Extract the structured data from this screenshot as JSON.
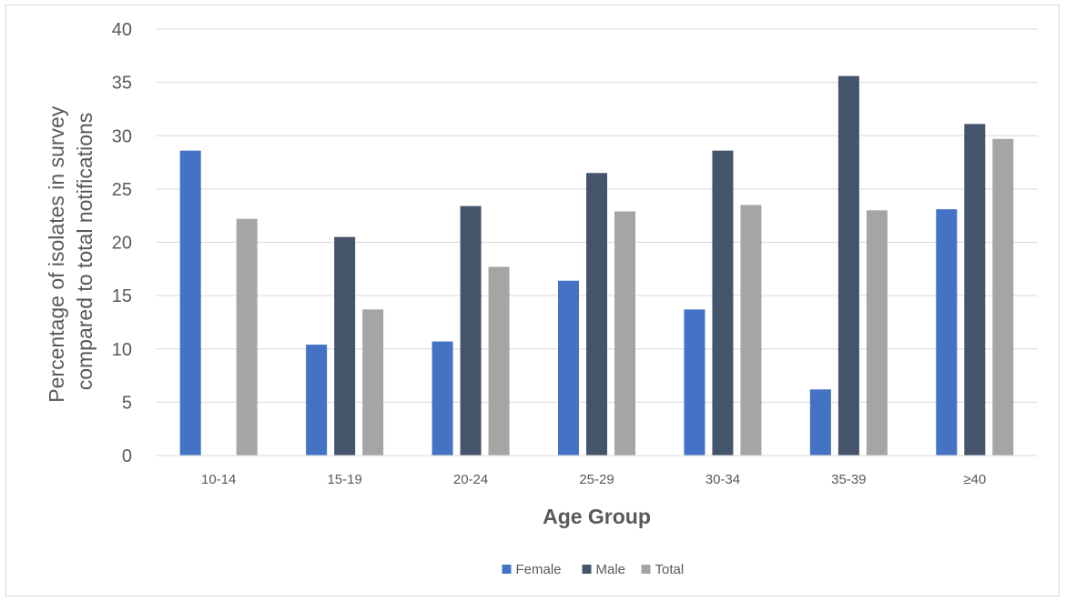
{
  "chart_data": {
    "type": "bar",
    "title": "",
    "xlabel": "Age Group",
    "ylabel_lines": [
      "Percentage of isolates in survey",
      "compared to total notifications"
    ],
    "ylim": [
      0,
      40
    ],
    "yticks": [
      0,
      5,
      10,
      15,
      20,
      25,
      30,
      35,
      40
    ],
    "categories": [
      "10-14",
      "15-19",
      "20-24",
      "25-29",
      "30-34",
      "35-39",
      "≥40"
    ],
    "series": [
      {
        "name": "Female",
        "color": "#4472c4",
        "values": [
          28.6,
          10.4,
          10.7,
          16.4,
          13.7,
          6.2,
          23.1
        ]
      },
      {
        "name": "Male",
        "color": "#44546a",
        "values": [
          0,
          20.5,
          23.4,
          26.5,
          28.6,
          35.6,
          31.1
        ]
      },
      {
        "name": "Total",
        "color": "#a5a5a5",
        "values": [
          22.2,
          13.7,
          17.7,
          22.9,
          23.5,
          23.0,
          29.7
        ]
      }
    ],
    "grid": true,
    "legend_position": "bottom"
  }
}
